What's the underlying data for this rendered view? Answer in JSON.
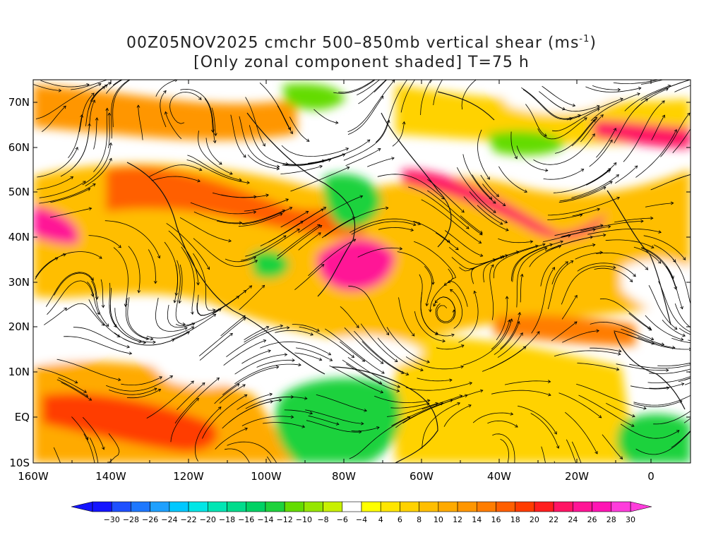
{
  "header": {
    "title_line1_prefix": "00Z05NOV2025 cmchr 500–850mb vertical shear (ms",
    "title_line1_sup": "-1",
    "title_line1_suffix": ")",
    "title_line2": "[Only zonal component shaded] T=75 h"
  },
  "map": {
    "lon_labels": [
      "160W",
      "140W",
      "120W",
      "100W",
      "80W",
      "60W",
      "40W",
      "20W",
      "0"
    ],
    "lat_labels": [
      "70N",
      "60N",
      "50N",
      "40N",
      "30N",
      "20N",
      "10N",
      "EQ",
      "10S"
    ]
  },
  "colorbar": {
    "labels": [
      "-30",
      "-28",
      "-26",
      "-24",
      "-22",
      "-20",
      "-18",
      "-16",
      "-14",
      "-12",
      "-10",
      "-8",
      "-6",
      "-4",
      "4",
      "6",
      "8",
      "10",
      "12",
      "14",
      "16",
      "18",
      "20",
      "22",
      "24",
      "26",
      "28",
      "30"
    ],
    "colors": [
      "#1414ff",
      "#1e50ff",
      "#1e78ff",
      "#1ea0ff",
      "#00c8ff",
      "#00e6e6",
      "#00e6b4",
      "#00dc8c",
      "#00d264",
      "#1ed23c",
      "#64dc00",
      "#96e600",
      "#c8f000",
      "#ffffff",
      "#ffff00",
      "#ffe600",
      "#ffd200",
      "#ffbe00",
      "#ffaa00",
      "#ff9600",
      "#ff7d00",
      "#ff5f00",
      "#ff3c00",
      "#ff1e1e",
      "#ff1464",
      "#ff1496",
      "#ff14b4",
      "#ff3cdc"
    ],
    "low_end_color": "#1414ff",
    "high_end_color": "#ff3cdc"
  }
}
